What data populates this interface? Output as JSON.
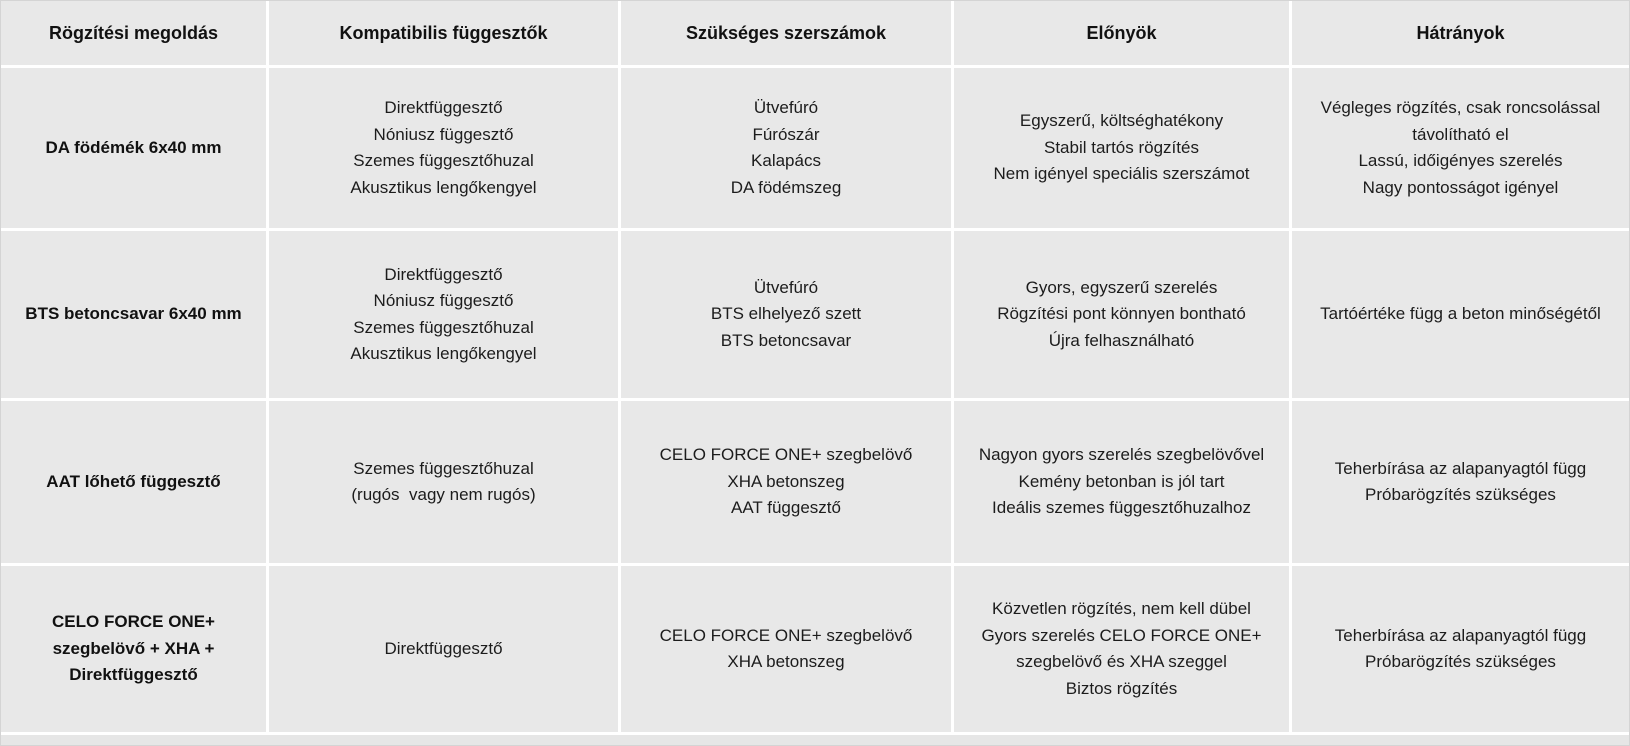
{
  "chart_data": {
    "type": "table",
    "columns": [
      "Rögzítési megoldás",
      "Kompatibilis függesztők",
      "Szükséges szerszámok",
      "Előnyök",
      "Hátrányok"
    ],
    "rows": [
      [
        "DA födémék 6x40 mm",
        [
          "Direktfüggesztő",
          "Nóniusz függesztő",
          "Szemes függesztőhuzal",
          "Akusztikus lengőkengyel"
        ],
        [
          "Ütvefúró",
          "Fúrószár",
          "Kalapács",
          "DA födémszeg"
        ],
        [
          "Egyszerű, költséghatékony",
          "Stabil tartós rögzítés",
          "Nem igényel speciális szerszámot"
        ],
        [
          "Végleges rögzítés, csak roncsolással távolítható el",
          "Lassú, időigényes szerelés",
          "Nagy pontosságot igényel"
        ]
      ],
      [
        "BTS betoncsavar 6x40 mm",
        [
          "Direktfüggesztő",
          "Nóniusz függesztő",
          "Szemes függesztőhuzal",
          "Akusztikus lengőkengyel"
        ],
        [
          "Ütvefúró",
          "BTS elhelyező szett",
          "BTS betoncsavar"
        ],
        [
          "Gyors, egyszerű szerelés",
          "Rögzítési pont könnyen bontható",
          "Újra felhasználható"
        ],
        [
          "Tartóértéke függ a beton minőségétől"
        ]
      ],
      [
        "AAT lőhető függesztő",
        [
          "Szemes függesztőhuzal",
          "(rugós  vagy nem rugós)"
        ],
        [
          "CELO FORCE ONE+ szegbelövő",
          "XHA betonszeg",
          "AAT függesztő"
        ],
        [
          "Nagyon gyors szerelés szegbelövővel",
          "Kemény betonban is jól tart",
          "Ideális szemes függesztőhuzalhoz"
        ],
        [
          "Teherbírása az alapanyagtól függ",
          "Próbarögzítés szükséges"
        ]
      ],
      [
        "CELO FORCE ONE+ szegbelövő + XHA + Direktfüggesztő",
        [
          "Direktfüggesztő"
        ],
        [
          "CELO FORCE ONE+ szegbelövő",
          "XHA betonszeg"
        ],
        [
          "Közvetlen rögzítés, nem kell dübel",
          "Gyors szerelés CELO FORCE ONE+ szegbelövő és XHA szeggel",
          "Biztos rögzítés"
        ],
        [
          "Teherbírása az alapanyagtól függ",
          "Próbarögzítés szükséges"
        ]
      ]
    ],
    "colors": {
      "cell_bg": "#e8e8e8",
      "grid_line": "#ffffff",
      "text": "#1c1c1c",
      "outer_border": "#d4d4d4"
    },
    "layout": {
      "header_bold": true,
      "first_column_bold": true,
      "cell_alignment": "center"
    }
  }
}
